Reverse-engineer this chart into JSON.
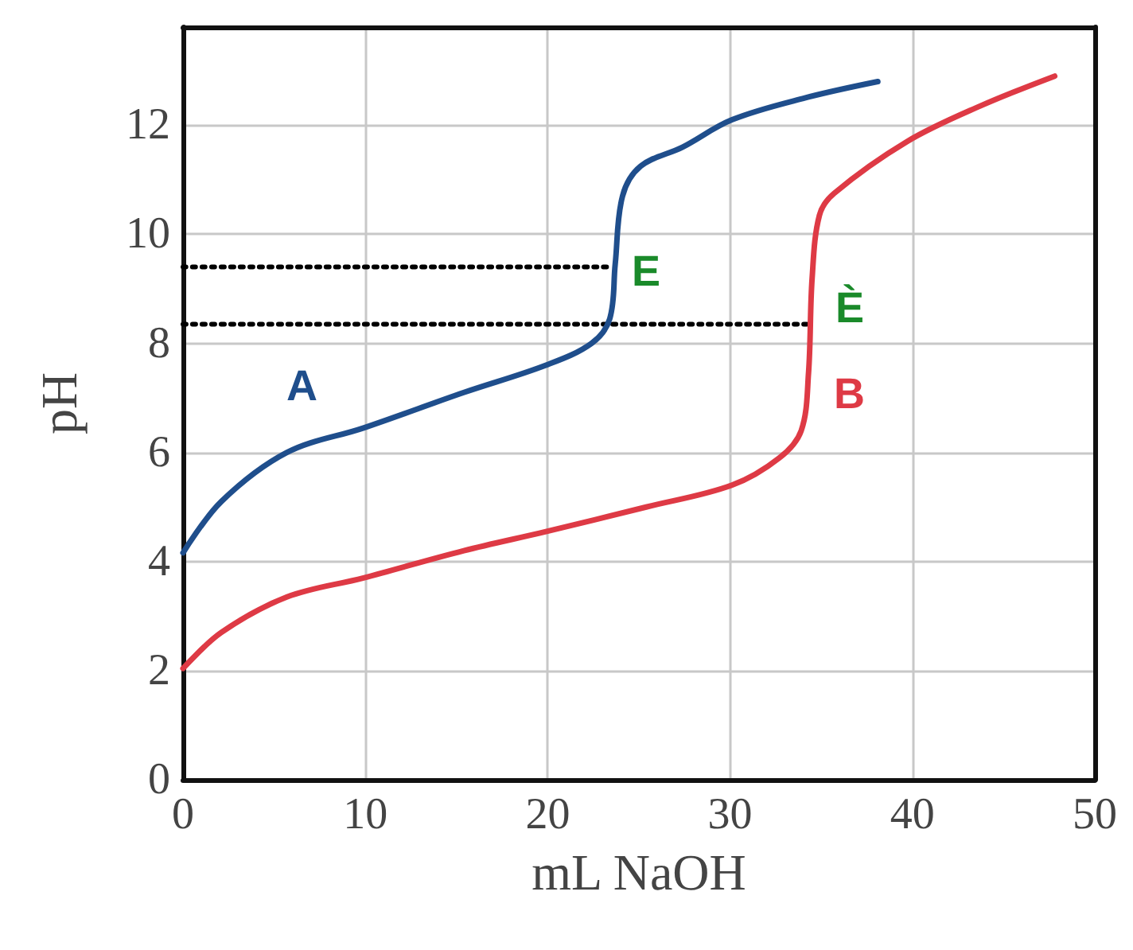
{
  "chart_data": {
    "type": "line",
    "xlabel": "mL NaOH",
    "ylabel": "pH",
    "xlim": [
      0,
      50
    ],
    "xticks": [
      0,
      10,
      20,
      30,
      40,
      50
    ],
    "ylim": [
      0,
      13.8
    ],
    "yticks": [
      0,
      2,
      4,
      6,
      8,
      10,
      12
    ],
    "grid": true,
    "legend": false,
    "marker": "none",
    "series": [
      {
        "name": "A",
        "color": "#1f4e8c",
        "x": [
          0,
          2.1,
          5.7,
          9.9,
          15.4,
          19.9,
          22.4,
          23.4,
          23.7,
          24.1,
          25.1,
          27.4,
          30.1,
          34.1,
          38.1
        ],
        "values": [
          4.16,
          5.1,
          6.0,
          6.45,
          7.1,
          7.6,
          8.0,
          8.45,
          9.45,
          10.7,
          11.25,
          11.6,
          12.1,
          12.5,
          12.8
        ]
      },
      {
        "name": "B",
        "color": "#de3a45",
        "x": [
          0,
          2.1,
          5.7,
          9.9,
          15.4,
          19.9,
          25.4,
          30.1,
          32.7,
          33.9,
          34.3,
          34.5,
          34.9,
          35.7,
          39.7,
          43.7,
          47.8
        ],
        "values": [
          2.04,
          2.7,
          3.35,
          3.7,
          4.2,
          4.55,
          5.0,
          5.4,
          5.9,
          6.4,
          7.45,
          9.2,
          10.35,
          10.75,
          11.7,
          12.35,
          12.9
        ]
      },
      {
        "color": "#000000",
        "line_style": "dotted",
        "x": [
          0,
          23.4
        ],
        "values": [
          9.4,
          9.4
        ]
      },
      {
        "color": "#000000",
        "line_style": "dotted",
        "x": [
          0,
          34.2
        ],
        "values": [
          8.35,
          8.35
        ]
      }
    ],
    "annotations": [
      "E",
      "È"
    ]
  }
}
